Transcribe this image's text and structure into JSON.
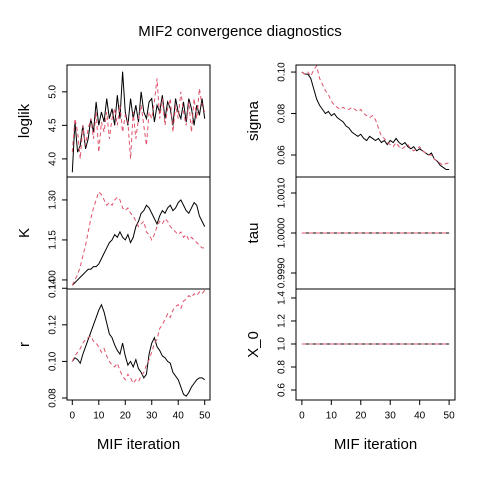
{
  "chart_data": {
    "type": "line",
    "title": "MIF2 convergence diagnostics",
    "xlabel": "MIF iteration",
    "x": [
      0,
      1,
      2,
      3,
      4,
      5,
      6,
      7,
      8,
      9,
      10,
      11,
      12,
      13,
      14,
      15,
      16,
      17,
      18,
      19,
      20,
      21,
      22,
      23,
      24,
      25,
      26,
      27,
      28,
      29,
      30,
      31,
      32,
      33,
      34,
      35,
      36,
      37,
      38,
      39,
      40,
      41,
      42,
      43,
      44,
      45,
      46,
      47,
      48,
      49,
      50
    ],
    "xlim": [
      -2,
      52
    ],
    "xticks": [
      0,
      10,
      20,
      30,
      40,
      50
    ],
    "panels": [
      {
        "ylabel": "loglik",
        "ylim": [
          3.73,
          5.4
        ],
        "yticks": [
          {
            "value": 4,
            "label": "4.0"
          },
          {
            "value": 4.5,
            "label": "4.5"
          },
          {
            "value": 5,
            "label": "5.0"
          }
        ],
        "series": [
          {
            "color": "#000000",
            "linestyle": "solid",
            "values": [
              3.8,
              4.55,
              4.1,
              4.2,
              4.5,
              4.15,
              4.3,
              4.6,
              4.4,
              4.85,
              4.5,
              4.7,
              4.55,
              4.9,
              4.6,
              4.75,
              4.5,
              4.95,
              4.6,
              5.3,
              4.7,
              4.5,
              4.9,
              4.6,
              4.8,
              4.55,
              5.0,
              4.7,
              4.6,
              4.85,
              4.9,
              4.55,
              4.8,
              4.7,
              4.95,
              4.6,
              4.85,
              4.75,
              4.5,
              4.9,
              4.7,
              4.6,
              4.85,
              4.55,
              4.9,
              4.75,
              4.5,
              4.8,
              4.65,
              4.9,
              4.6
            ]
          },
          {
            "color": "#df536b",
            "linestyle": "dashed",
            "values": [
              4.1,
              4.6,
              4.4,
              4.0,
              4.5,
              4.2,
              4.45,
              4.6,
              4.3,
              4.7,
              4.1,
              4.55,
              4.4,
              4.7,
              4.3,
              4.6,
              4.75,
              4.5,
              4.8,
              4.4,
              4.65,
              4.55,
              4.0,
              4.7,
              4.3,
              4.6,
              4.8,
              4.5,
              4.2,
              4.7,
              4.6,
              4.85,
              5.2,
              4.6,
              4.9,
              4.5,
              4.75,
              4.9,
              4.4,
              4.8,
              4.6,
              5.0,
              4.7,
              4.5,
              4.85,
              4.4,
              4.9,
              4.6,
              5.05,
              4.8,
              4.7
            ]
          }
        ]
      },
      {
        "ylabel": "K",
        "ylim": [
          0.966,
          1.386
        ],
        "yticks": [
          {
            "value": 1,
            "label": "1.00"
          },
          {
            "value": 1.15,
            "label": "1.15"
          },
          {
            "value": 1.3,
            "label": "1.30"
          }
        ],
        "series": [
          {
            "color": "#000000",
            "linestyle": "solid",
            "values": [
              0.98,
              0.99,
              1.0,
              1.01,
              1.02,
              1.03,
              1.04,
              1.04,
              1.05,
              1.05,
              1.06,
              1.08,
              1.1,
              1.12,
              1.14,
              1.15,
              1.17,
              1.16,
              1.18,
              1.16,
              1.15,
              1.17,
              1.14,
              1.16,
              1.2,
              1.22,
              1.25,
              1.26,
              1.28,
              1.27,
              1.25,
              1.23,
              1.21,
              1.24,
              1.26,
              1.25,
              1.27,
              1.28,
              1.26,
              1.27,
              1.29,
              1.3,
              1.28,
              1.26,
              1.25,
              1.27,
              1.29,
              1.28,
              1.24,
              1.22,
              1.2
            ]
          },
          {
            "color": "#df536b",
            "linestyle": "dashed",
            "values": [
              0.98,
              1.0,
              1.02,
              1.05,
              1.09,
              1.13,
              1.18,
              1.23,
              1.27,
              1.3,
              1.33,
              1.32,
              1.3,
              1.28,
              1.29,
              1.28,
              1.3,
              1.31,
              1.3,
              1.27,
              1.26,
              1.27,
              1.25,
              1.24,
              1.22,
              1.2,
              1.21,
              1.22,
              1.18,
              1.17,
              1.15,
              1.17,
              1.2,
              1.22,
              1.21,
              1.23,
              1.22,
              1.2,
              1.19,
              1.18,
              1.17,
              1.18,
              1.16,
              1.17,
              1.15,
              1.16,
              1.15,
              1.14,
              1.13,
              1.12,
              1.12
            ]
          }
        ]
      },
      {
        "ylabel": "r",
        "ylim": [
          0.0789,
          0.1396
        ],
        "yticks": [
          0.08,
          {
            "value": 0.1,
            "label": "0.10"
          },
          0.12,
          0.14
        ],
        "series": [
          {
            "color": "#000000",
            "linestyle": "solid",
            "values": [
              0.1,
              0.102,
              0.101,
              0.099,
              0.104,
              0.108,
              0.112,
              0.116,
              0.12,
              0.124,
              0.128,
              0.131,
              0.127,
              0.121,
              0.115,
              0.113,
              0.109,
              0.106,
              0.104,
              0.11,
              0.103,
              0.098,
              0.1,
              0.097,
              0.101,
              0.096,
              0.094,
              0.091,
              0.093,
              0.104,
              0.11,
              0.113,
              0.108,
              0.106,
              0.103,
              0.102,
              0.1,
              0.099,
              0.094,
              0.092,
              0.09,
              0.086,
              0.082,
              0.081,
              0.083,
              0.086,
              0.088,
              0.09,
              0.091,
              0.091,
              0.09
            ]
          },
          {
            "color": "#df536b",
            "linestyle": "dashed",
            "values": [
              0.1,
              0.103,
              0.105,
              0.107,
              0.11,
              0.112,
              0.113,
              0.114,
              0.111,
              0.11,
              0.108,
              0.105,
              0.107,
              0.103,
              0.1,
              0.098,
              0.097,
              0.099,
              0.095,
              0.092,
              0.09,
              0.093,
              0.091,
              0.088,
              0.09,
              0.089,
              0.092,
              0.094,
              0.098,
              0.101,
              0.105,
              0.11,
              0.112,
              0.118,
              0.12,
              0.123,
              0.126,
              0.124,
              0.128,
              0.13,
              0.131,
              0.129,
              0.133,
              0.134,
              0.136,
              0.135,
              0.137,
              0.136,
              0.138,
              0.137,
              0.139
            ]
          }
        ]
      },
      {
        "ylabel": "sigma",
        "ylim": [
          0.0494,
          0.1034
        ],
        "yticks": [
          0.06,
          0.08,
          {
            "value": 0.1,
            "label": "0.10"
          }
        ],
        "series": [
          {
            "color": "#000000",
            "linestyle": "solid",
            "values": [
              0.1,
              0.099,
              0.099,
              0.097,
              0.092,
              0.087,
              0.084,
              0.082,
              0.08,
              0.081,
              0.079,
              0.08,
              0.078,
              0.077,
              0.076,
              0.074,
              0.073,
              0.071,
              0.07,
              0.069,
              0.07,
              0.068,
              0.067,
              0.069,
              0.068,
              0.067,
              0.068,
              0.066,
              0.067,
              0.065,
              0.067,
              0.066,
              0.068,
              0.066,
              0.065,
              0.066,
              0.064,
              0.063,
              0.064,
              0.062,
              0.063,
              0.062,
              0.061,
              0.06,
              0.061,
              0.058,
              0.057,
              0.055,
              0.054,
              0.053,
              0.053
            ]
          },
          {
            "color": "#df536b",
            "linestyle": "dashed",
            "values": [
              0.1,
              0.099,
              0.1,
              0.098,
              0.101,
              0.103,
              0.097,
              0.094,
              0.091,
              0.089,
              0.086,
              0.084,
              0.083,
              0.082,
              0.083,
              0.082,
              0.082,
              0.083,
              0.082,
              0.081,
              0.082,
              0.08,
              0.079,
              0.078,
              0.079,
              0.077,
              0.073,
              0.069,
              0.068,
              0.066,
              0.065,
              0.064,
              0.066,
              0.064,
              0.063,
              0.064,
              0.065,
              0.063,
              0.062,
              0.063,
              0.064,
              0.062,
              0.061,
              0.06,
              0.06,
              0.058,
              0.057,
              0.056,
              0.055,
              0.056,
              0.056
            ]
          }
        ]
      },
      {
        "ylabel": "tau",
        "ylim": [
          0.9986,
          1.0014
        ],
        "yticks": [
          {
            "value": 0.999,
            "label": "0.9990"
          },
          {
            "value": 1,
            "label": "1.0000"
          },
          {
            "value": 1.001,
            "label": "1.0010"
          }
        ],
        "series": [
          {
            "color": "#000000",
            "linestyle": "solid",
            "values": [
              1,
              1,
              1,
              1,
              1,
              1,
              1,
              1,
              1,
              1,
              1,
              1,
              1,
              1,
              1,
              1,
              1,
              1,
              1,
              1,
              1,
              1,
              1,
              1,
              1,
              1,
              1,
              1,
              1,
              1,
              1,
              1,
              1,
              1,
              1,
              1,
              1,
              1,
              1,
              1,
              1,
              1,
              1,
              1,
              1,
              1,
              1,
              1,
              1,
              1,
              1
            ]
          },
          {
            "color": "#df536b",
            "linestyle": "dashed",
            "values": [
              1,
              1,
              1,
              1,
              1,
              1,
              1,
              1,
              1,
              1,
              1,
              1,
              1,
              1,
              1,
              1,
              1,
              1,
              1,
              1,
              1,
              1,
              1,
              1,
              1,
              1,
              1,
              1,
              1,
              1,
              1,
              1,
              1,
              1,
              1,
              1,
              1,
              1,
              1,
              1,
              1,
              1,
              1,
              1,
              1,
              1,
              1,
              1,
              1,
              1,
              1
            ]
          }
        ]
      },
      {
        "ylabel": "X_0",
        "ylim": [
          0.513,
          1.478
        ],
        "yticks": [
          0.6,
          0.8,
          {
            "value": 1,
            "label": "1.0"
          },
          1.2,
          1.4
        ],
        "series": [
          {
            "color": "#000000",
            "linestyle": "solid",
            "values": [
              1,
              1,
              1,
              1,
              1,
              1,
              1,
              1,
              1,
              1,
              1,
              1,
              1,
              1,
              1,
              1,
              1,
              1,
              1,
              1,
              1,
              1,
              1,
              1,
              1,
              1,
              1,
              1,
              1,
              1,
              1,
              1,
              1,
              1,
              1,
              1,
              1,
              1,
              1,
              1,
              1,
              1,
              1,
              1,
              1,
              1,
              1,
              1,
              1,
              1,
              1
            ]
          },
          {
            "color": "#df536b",
            "linestyle": "dashed",
            "values": [
              1,
              1,
              1,
              1,
              1,
              1,
              1,
              1,
              1,
              1,
              1,
              1,
              1,
              1,
              1,
              1,
              1,
              1,
              1,
              1,
              1,
              1,
              1,
              1,
              1,
              1,
              1,
              1,
              1,
              1,
              1,
              1,
              1,
              1,
              1,
              1,
              1,
              1,
              1,
              1,
              1,
              1,
              1,
              1,
              1,
              1,
              1,
              1,
              1,
              1,
              1
            ]
          }
        ]
      }
    ]
  }
}
